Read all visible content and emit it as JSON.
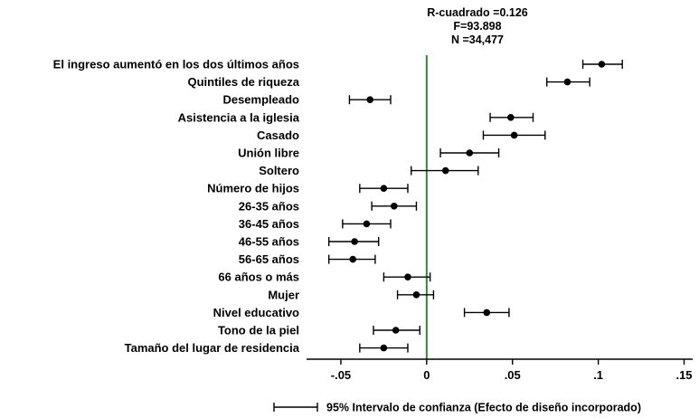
{
  "chart_data": {
    "type": "scatter",
    "subtype": "coefficient-plot-with-confidence-intervals",
    "stats": [
      "R-cuadrado =0.126",
      "F=93.898",
      "N =34,477"
    ],
    "xlim": [
      -0.07,
      0.155
    ],
    "xticks": [
      -0.05,
      0,
      0.05,
      0.1,
      0.15
    ],
    "xtick_labels": [
      "-.05",
      "0",
      ".05",
      ".1",
      ".15"
    ],
    "reference_line": {
      "x": 0,
      "color": "#2e8b2e"
    },
    "grid": false,
    "legend": {
      "position": "bottom-right",
      "label": "95% Intervalo de confianza (Efecto de diseño incorporado)"
    },
    "items": [
      {
        "label": "El ingreso aumentó en los dos últimos años",
        "estimate": 0.102,
        "lo": 0.091,
        "hi": 0.114
      },
      {
        "label": "Quintiles de riqueza",
        "estimate": 0.082,
        "lo": 0.07,
        "hi": 0.095
      },
      {
        "label": "Desempleado",
        "estimate": -0.033,
        "lo": -0.045,
        "hi": -0.021
      },
      {
        "label": "Asistencia a la iglesia",
        "estimate": 0.049,
        "lo": 0.037,
        "hi": 0.062
      },
      {
        "label": "Casado",
        "estimate": 0.051,
        "lo": 0.033,
        "hi": 0.069
      },
      {
        "label": "Unión libre",
        "estimate": 0.025,
        "lo": 0.008,
        "hi": 0.042
      },
      {
        "label": "Soltero",
        "estimate": 0.011,
        "lo": -0.009,
        "hi": 0.03
      },
      {
        "label": "Número de hijos",
        "estimate": -0.025,
        "lo": -0.039,
        "hi": -0.011
      },
      {
        "label": "26-35 años",
        "estimate": -0.019,
        "lo": -0.032,
        "hi": -0.006
      },
      {
        "label": "36-45 años",
        "estimate": -0.035,
        "lo": -0.049,
        "hi": -0.021
      },
      {
        "label": "46-55 años",
        "estimate": -0.042,
        "lo": -0.057,
        "hi": -0.028
      },
      {
        "label": "56-65 años",
        "estimate": -0.043,
        "lo": -0.057,
        "hi": -0.03
      },
      {
        "label": "66 años o más",
        "estimate": -0.011,
        "lo": -0.025,
        "hi": 0.002
      },
      {
        "label": "Mujer",
        "estimate": -0.006,
        "lo": -0.017,
        "hi": 0.004
      },
      {
        "label": "Nivel educativo",
        "estimate": 0.035,
        "lo": 0.022,
        "hi": 0.048
      },
      {
        "label": "Tono de la piel",
        "estimate": -0.018,
        "lo": -0.031,
        "hi": -0.004
      },
      {
        "label": "Tamaño del lugar de residencia",
        "estimate": -0.025,
        "lo": -0.039,
        "hi": -0.011
      }
    ]
  }
}
